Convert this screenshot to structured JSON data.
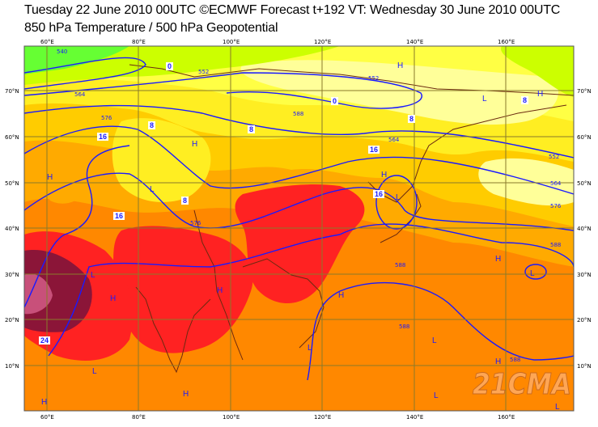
{
  "header": {
    "line1": "Tuesday 22 June 2010 00UTC ©ECMWF Forecast t+192 VT: Wednesday 30 June 2010 00UTC",
    "line2": "850 hPa Temperature / 500 hPa Geopotential"
  },
  "axes": {
    "longitudes": [
      "60°E",
      "80°E",
      "100°E",
      "120°E",
      "140°E",
      "160°E"
    ],
    "latitudes": [
      "70°N",
      "60°N",
      "50°N",
      "40°N",
      "30°N",
      "20°N",
      "10°N"
    ]
  },
  "pressure_centers": [
    "H",
    "H",
    "H",
    "H",
    "H",
    "H",
    "H",
    "H",
    "H",
    "H",
    "H",
    "H",
    "L",
    "L",
    "L",
    "L",
    "L",
    "L",
    "L",
    "L",
    "L",
    "L"
  ],
  "geopotential_labels": [
    "540",
    "552",
    "552",
    "564",
    "564",
    "576",
    "576",
    "588",
    "588",
    "588",
    "552",
    "564",
    "576",
    "588",
    "588"
  ],
  "temperature_labels": [
    "0",
    "0",
    "8",
    "8",
    "8",
    "8",
    "8",
    "16",
    "16",
    "16",
    "16",
    "24"
  ],
  "watermark": "21CMA",
  "colors": {
    "contour": "#1a1aff",
    "orange": "#ff8800",
    "red": "#ff2222",
    "maroon": "#8b1538",
    "yellow": "#ffff44"
  }
}
